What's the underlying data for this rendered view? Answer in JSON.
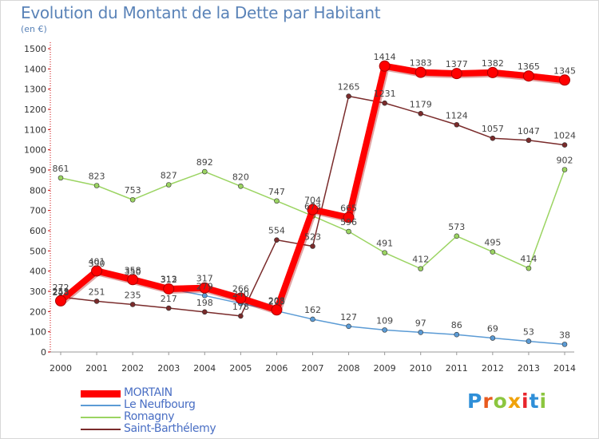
{
  "header": {
    "title": "Evolution du Montant de la Dette par Habitant",
    "unit": "(en €)"
  },
  "logo": {
    "text": "Proxiti",
    "colors": [
      "#2f8fd8",
      "#e85a1e",
      "#8cc63f",
      "#f0a20a",
      "#e8242c",
      "#2f8fd8",
      "#8cc63f"
    ]
  },
  "chart_data": {
    "type": "line",
    "title": "Evolution du Montant de la Dette par Habitant",
    "ylabel": "(en €)",
    "xlabel": "",
    "x": [
      "2000",
      "2001",
      "2002",
      "2003",
      "2004",
      "2005",
      "2006",
      "2007",
      "2008",
      "2009",
      "2010",
      "2011",
      "2012",
      "2013",
      "2014"
    ],
    "ylim": [
      0,
      1500
    ],
    "yticks": [
      0,
      100,
      200,
      300,
      400,
      500,
      600,
      700,
      800,
      900,
      1000,
      1100,
      1200,
      1300,
      1400,
      1500
    ],
    "grid": false,
    "legend": "bottom-left",
    "series": [
      {
        "name": "Romagny",
        "color": "#9bd462",
        "values": [
          861,
          823,
          753,
          827,
          892,
          820,
          747,
          673,
          596,
          491,
          412,
          573,
          495,
          414,
          902
        ]
      },
      {
        "name": "Saint-Barthélemy",
        "color": "#7a2b2b",
        "values": [
          272,
          251,
          235,
          217,
          198,
          178,
          554,
          523,
          1265,
          1231,
          1179,
          1124,
          1057,
          1047,
          1024
        ]
      },
      {
        "name": "Le Neufbourg",
        "color": "#5b9bd5",
        "values": [
          248,
          390,
          350,
          313,
          279,
          240,
          203,
          162,
          127,
          109,
          97,
          86,
          69,
          53,
          38
        ]
      },
      {
        "name": "MORTAIN",
        "color": "#ff0000",
        "values": [
          253,
          401,
          358,
          312,
          317,
          266,
          208,
          704,
          665,
          1414,
          1383,
          1377,
          1382,
          1365,
          1345
        ]
      }
    ]
  }
}
